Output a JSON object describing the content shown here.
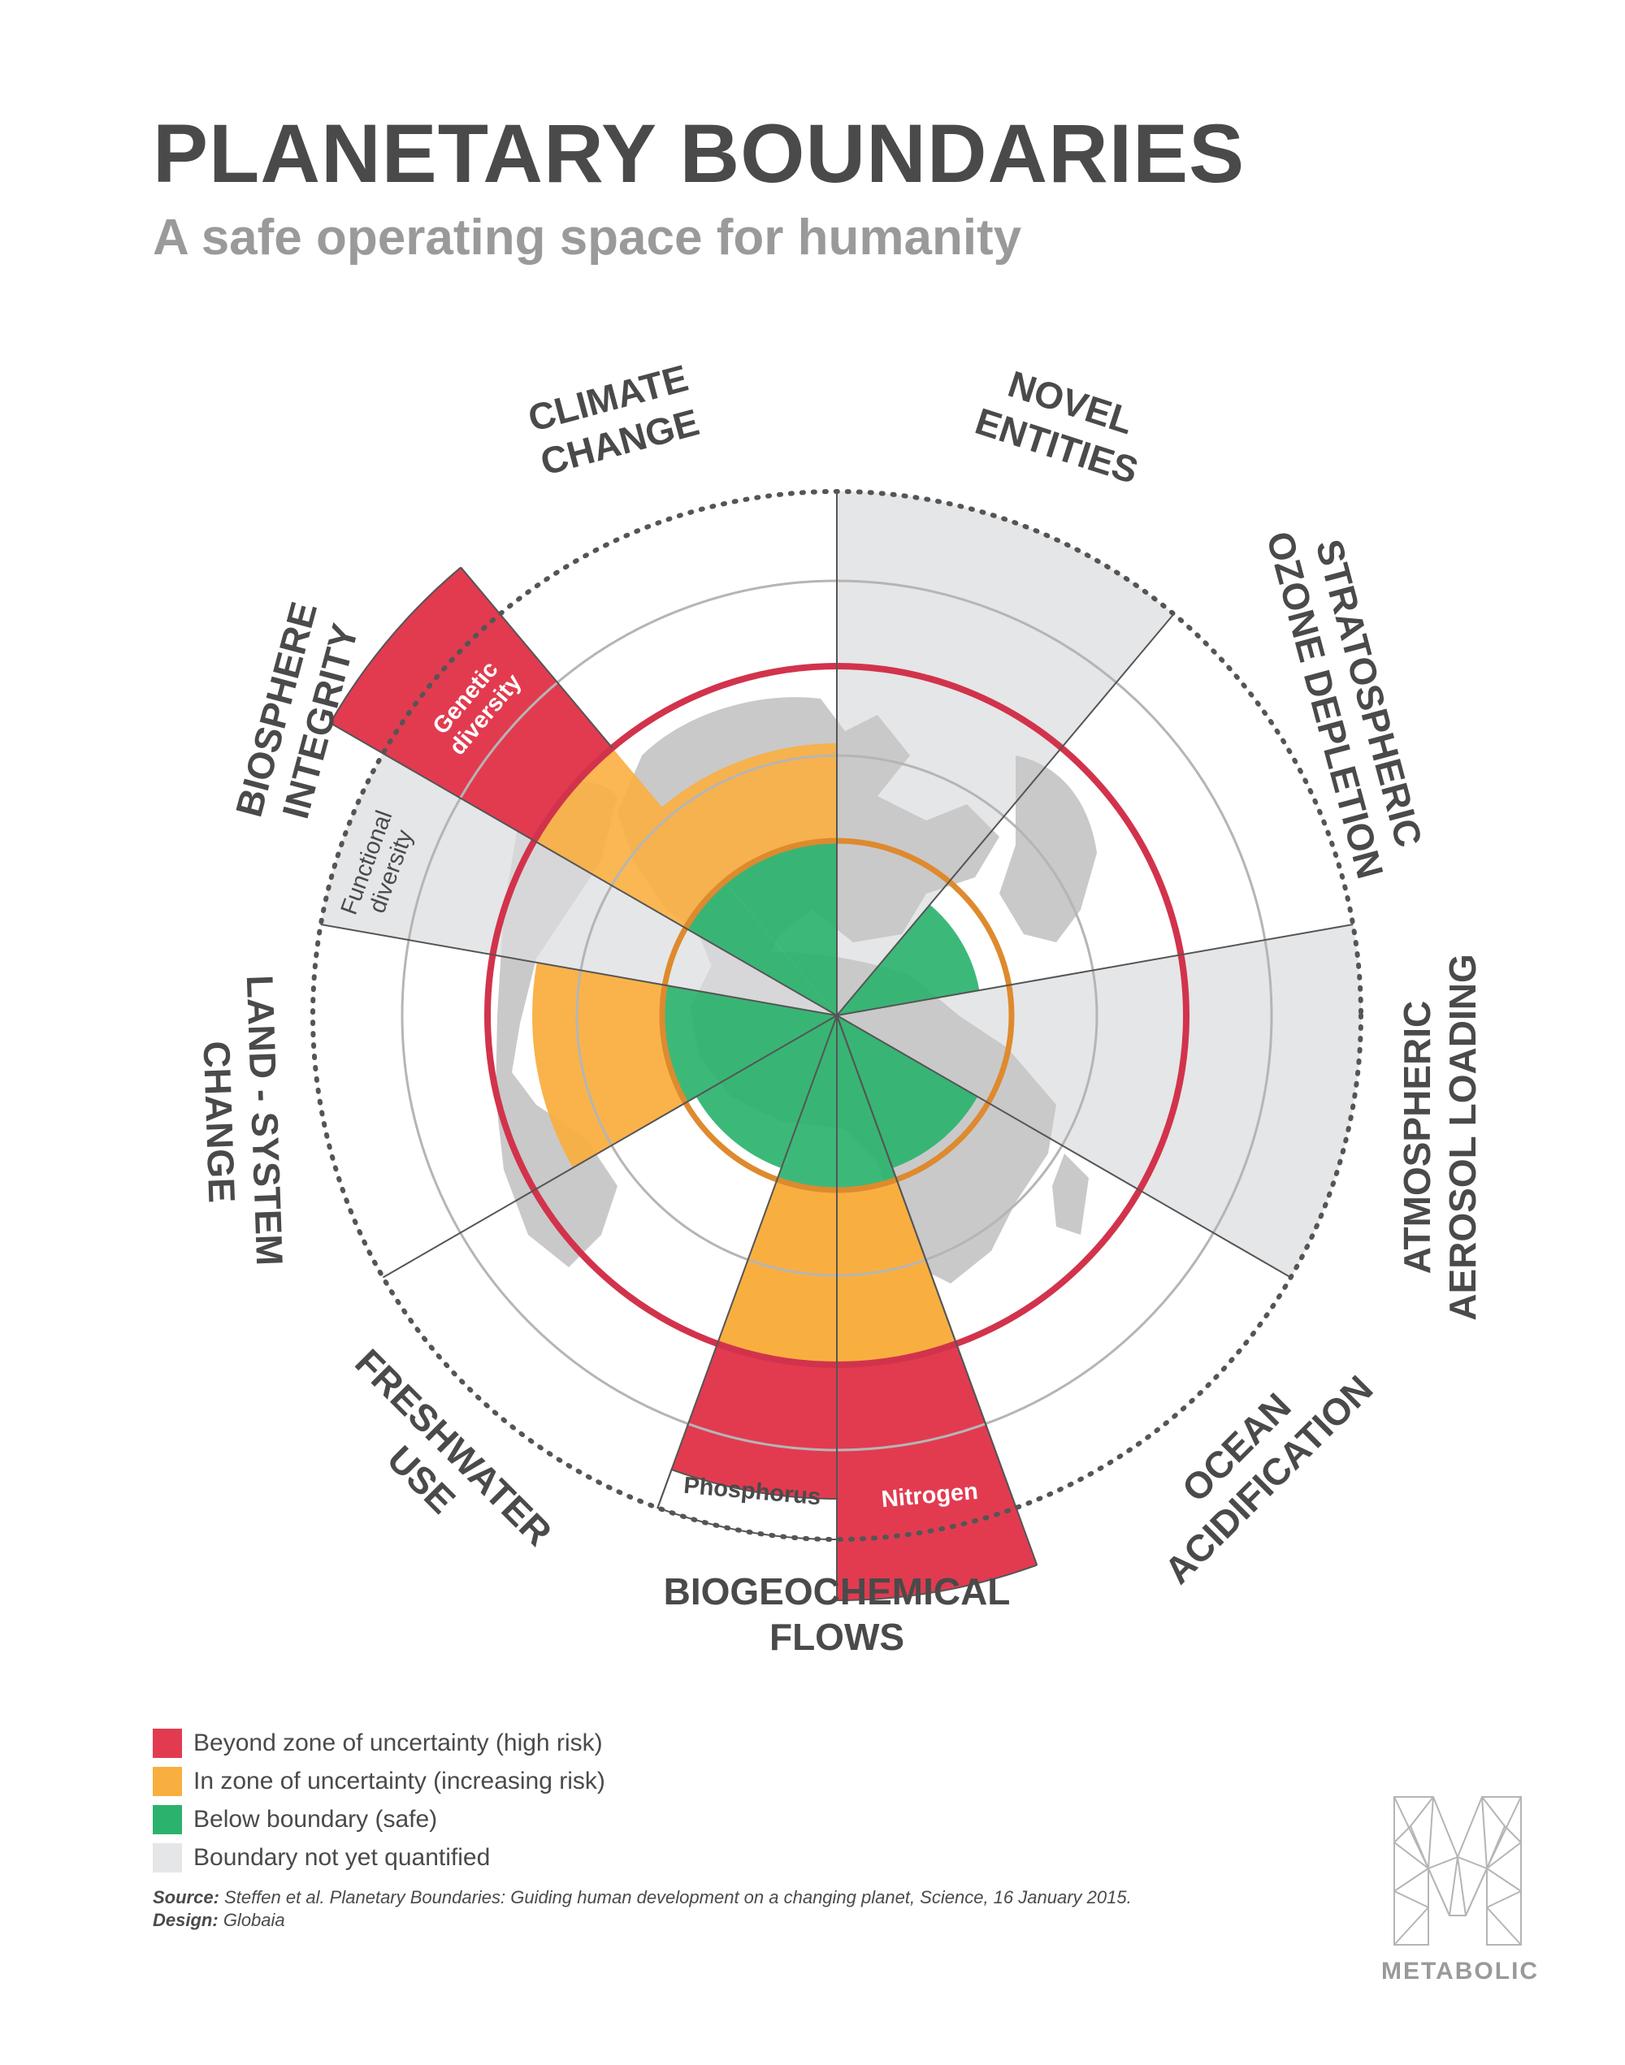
{
  "header": {
    "title": "PLANETARY BOUNDARIES",
    "subtitle": "A safe operating space for humanity"
  },
  "colors": {
    "high_risk": "#e23b50",
    "increasing_risk": "#f9af40",
    "safe": "#2bb36e",
    "not_quantified": "#e5e6e7",
    "boundary_ring": "#d2334c",
    "safe_ring": "#de8a2e",
    "text": "#4a4a4a"
  },
  "categories": [
    {
      "id": "climate",
      "lines": [
        "CLIMATE",
        "CHANGE"
      ]
    },
    {
      "id": "novel",
      "lines": [
        "NOVEL",
        "ENTITIES"
      ]
    },
    {
      "id": "ozone",
      "lines": [
        "STRATOSPHERIC",
        "OZONE DEPLETION"
      ]
    },
    {
      "id": "aerosol",
      "lines": [
        "ATMOSPHERIC",
        "AEROSOL LOADING"
      ]
    },
    {
      "id": "ocean",
      "lines": [
        "OCEAN",
        "ACIDIFICATION"
      ]
    },
    {
      "id": "biogeo",
      "lines": [
        "BIOGEOCHEMICAL",
        "FLOWS"
      ]
    },
    {
      "id": "freshwater",
      "lines": [
        "FRESHWATER",
        "USE"
      ]
    },
    {
      "id": "land",
      "lines": [
        "LAND - SYSTEM",
        "CHANGE"
      ]
    },
    {
      "id": "biosphere",
      "lines": [
        "BIOSPHERE",
        "INTEGRITY"
      ]
    }
  ],
  "sub_labels": {
    "genetic": [
      "Genetic",
      "diversity"
    ],
    "functional": [
      "Functional",
      "diversity"
    ],
    "phosphorus": "Phosphorus",
    "nitrogen": "Nitrogen"
  },
  "legend": [
    {
      "label": "Beyond zone of uncertainty (high risk)",
      "color": "#e23b50"
    },
    {
      "label": "In zone of uncertainty (increasing risk)",
      "color": "#f9af40"
    },
    {
      "label": "Below boundary (safe)",
      "color": "#2bb36e"
    },
    {
      "label": "Boundary not yet quantified",
      "color": "#e5e6e7"
    }
  ],
  "footer": {
    "source_label": "Source:",
    "source_text": "Steffen et al. Planetary Boundaries: Guiding human development on a changing planet, Science, 16 January 2015.",
    "design_label": "Design:",
    "design_text": "Globaia"
  },
  "logo": {
    "text": "METABOLIC",
    "icon": "metabolic-m-logo-icon"
  }
}
